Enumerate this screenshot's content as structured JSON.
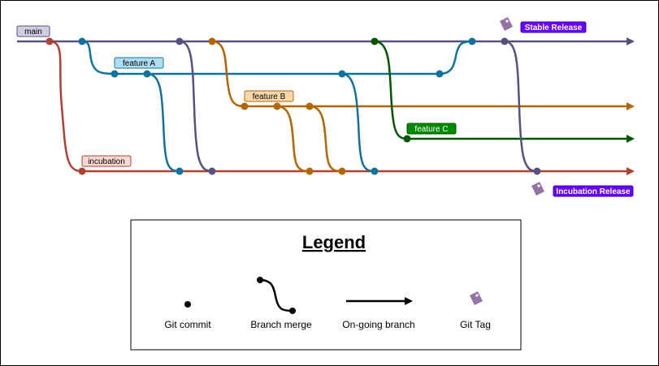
{
  "branches": {
    "main": {
      "label": "main",
      "color": "#56517e",
      "label_fill": "#d0cee2"
    },
    "feature_a": {
      "label": "feature A",
      "color": "#10739e",
      "label_fill": "#b1ddf0"
    },
    "feature_b": {
      "label": "feature B",
      "color": "#b46504",
      "label_fill": "#fad7ac"
    },
    "feature_c": {
      "label": "feature C",
      "color": "#005700",
      "label_fill": "#008a00"
    },
    "incubation": {
      "label": "incubation",
      "color": "#ae4132",
      "label_fill": "#fad9d5"
    }
  },
  "tags": {
    "stable": {
      "label": "Stable Release",
      "color": "#6a00ff"
    },
    "incubation": {
      "label": "Incubation Release",
      "color": "#6a00ff"
    },
    "icon_color": "#9673a6"
  },
  "legend": {
    "title": "Legend",
    "commit": "Git commit",
    "merge": "Branch merge",
    "ongoing": "On-going branch",
    "tag": "Git Tag"
  }
}
